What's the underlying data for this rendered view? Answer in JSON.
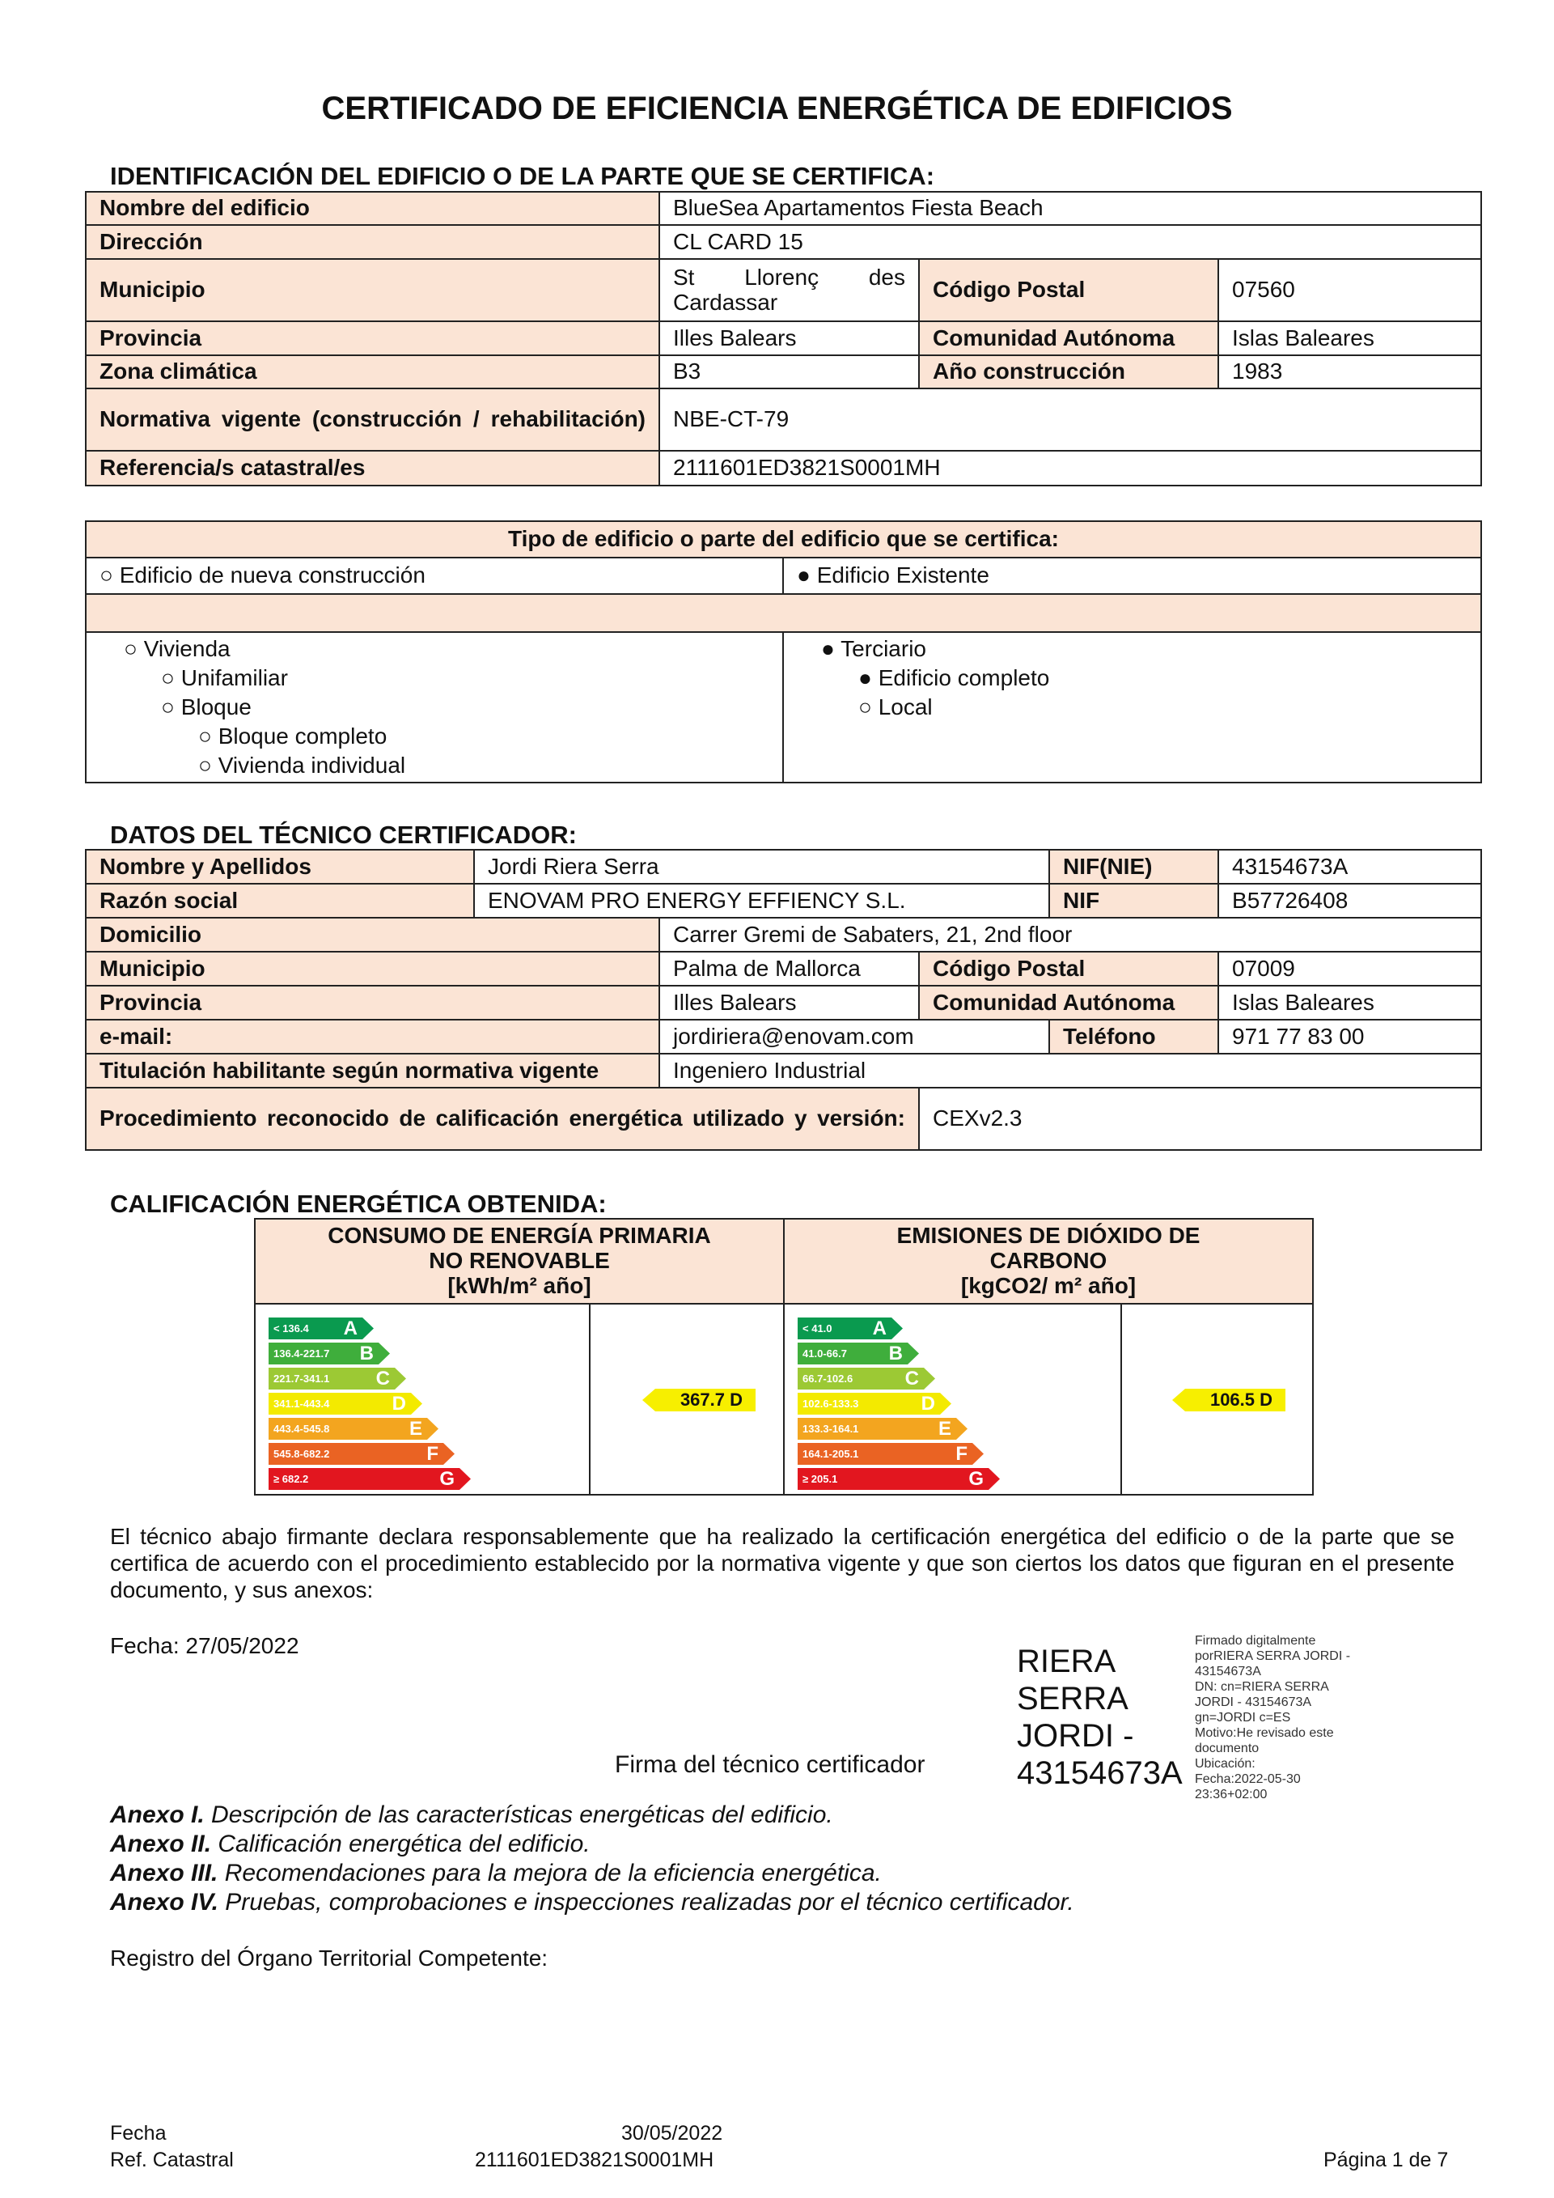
{
  "title": "CERTIFICADO DE EFICIENCIA ENERGÉTICA DE EDIFICIOS",
  "identificacion": {
    "heading": "IDENTIFICACIÓN DEL EDIFICIO O DE LA PARTE QUE SE CERTIFICA:",
    "nombre_label": "Nombre del edificio",
    "nombre": "BlueSea Apartamentos Fiesta Beach",
    "direccion_label": "Dirección",
    "direccion": "CL CARD 15",
    "municipio_label": "Municipio",
    "municipio": "St Llorenç des Cardassar",
    "cp_label": "Código Postal",
    "cp": "07560",
    "provincia_label": "Provincia",
    "provincia": "Illes Balears",
    "comunidad_label": "Comunidad Autónoma",
    "comunidad": "Islas Baleares",
    "zona_label": "Zona climática",
    "zona": "B3",
    "anio_label": "Año construcción",
    "anio": "1983",
    "normativa_label": "Normativa vigente (construcción / rehabilitación)",
    "normativa": "NBE-CT-79",
    "ref_label": "Referencia/s catastral/es",
    "ref": "2111601ED3821S0001MH"
  },
  "tipo": {
    "heading": "Tipo de edificio o parte del edificio que se certifica:",
    "nueva": "○ Edificio de nueva construcción",
    "existente": "● Edificio Existente",
    "vivienda": "○ Vivienda",
    "unifamiliar": "○ Unifamiliar",
    "bloque": "○ Bloque",
    "bloque_completo": "○ Bloque completo",
    "vivienda_individual": "○ Vivienda individual",
    "terciario": "● Terciario",
    "edificio_completo": "● Edificio completo",
    "local": "○ Local"
  },
  "tecnico": {
    "heading": "DATOS DEL TÉCNICO CERTIFICADOR:",
    "nombre_label": "Nombre y Apellidos",
    "nombre": "Jordi Riera Serra",
    "nif_nie_label": "NIF(NIE)",
    "nif_nie": "43154673A",
    "razon_label": "Razón social",
    "razon": "ENOVAM PRO ENERGY EFFIENCY S.L.",
    "nif_label": "NIF",
    "nif": "B57726408",
    "domicilio_label": "Domicilio",
    "domicilio": "Carrer Gremi de Sabaters, 21, 2nd floor",
    "municipio_label": "Municipio",
    "municipio": "Palma de Mallorca",
    "cp_label": "Código Postal",
    "cp": "07009",
    "provincia_label": "Provincia",
    "provincia": "Illes Balears",
    "comunidad_label": "Comunidad Autónoma",
    "comunidad": "Islas Baleares",
    "email_label": "e-mail:",
    "email": "jordiriera@enovam.com",
    "telefono_label": "Teléfono",
    "telefono": "971 77 83 00",
    "titulacion_label": "Titulación habilitante según normativa vigente",
    "titulacion": "Ingeniero Industrial",
    "procedimiento_label": "Procedimiento reconocido de calificación energética utilizado y versión:",
    "procedimiento": "CEXv2.3"
  },
  "calificacion": {
    "heading": "CALIFICACIÓN ENERGÉTICA OBTENIDA:",
    "consumo_header": "CONSUMO DE ENERGÍA PRIMARIA NO RENOVABLE",
    "consumo_unit": "[kWh/m² año]",
    "emisiones_header": "EMISIONES DE DIÓXIDO DE CARBONO",
    "emisiones_unit": "[kgCO2/ m² año]",
    "colors": [
      "#0a9a4f",
      "#3fae3c",
      "#9cc934",
      "#f3ea00",
      "#f3a51f",
      "#ea6323",
      "#e2161f"
    ],
    "letters": [
      "A",
      "B",
      "C",
      "D",
      "E",
      "F",
      "G"
    ],
    "consumo_ranges": [
      "< 136.4",
      "136.4-221.7",
      "221.7-341.1",
      "341.1-443.4",
      "443.4-545.8",
      "545.8-682.2",
      "≥ 682.2"
    ],
    "emisiones_ranges": [
      "< 41.0",
      "41.0-66.7",
      "66.7-102.6",
      "102.6-133.3",
      "133.3-164.1",
      "164.1-205.1",
      "≥ 205.1"
    ],
    "consumo_value": "367.7 D",
    "emisiones_value": "106.5 D"
  },
  "declaracion": "El técnico abajo firmante declara responsablemente que ha realizado la certificación energética del edificio o de la parte que se certifica de acuerdo con el procedimiento establecido por la normativa vigente y que son ciertos los datos que figuran en el presente documento, y sus anexos:",
  "fecha": "Fecha: 27/05/2022",
  "firma_label": "Firma del técnico certificador",
  "firma_nombre": [
    "RIERA",
    "SERRA",
    "JORDI -",
    "43154673A"
  ],
  "firma_digital": [
    "Firmado digitalmente",
    "porRIERA SERRA JORDI -",
    "43154673A",
    "DN: cn=RIERA SERRA",
    "JORDI - 43154673A",
    "gn=JORDI c=ES",
    "Motivo:He revisado este",
    "documento",
    "Ubicación:",
    "Fecha:2022-05-30",
    "23:36+02:00"
  ],
  "anexos": [
    {
      "k": "Anexo I.",
      "t": " Descripción de las características energéticas del edificio."
    },
    {
      "k": "Anexo II.",
      "t": " Calificación energética del edificio."
    },
    {
      "k": "Anexo III.",
      "t": " Recomendaciones para la mejora de la eficiencia energética."
    },
    {
      "k": "Anexo IV.",
      "t": " Pruebas, comprobaciones e inspecciones realizadas por el técnico certificador."
    }
  ],
  "registro": "Registro del Órgano Territorial Competente:",
  "footer": {
    "fecha_label": "Fecha",
    "fecha": "30/05/2022",
    "ref_label": "Ref. Catastral",
    "ref": "2111601ED3821S0001MH",
    "pagina": "Página 1 de 7"
  }
}
